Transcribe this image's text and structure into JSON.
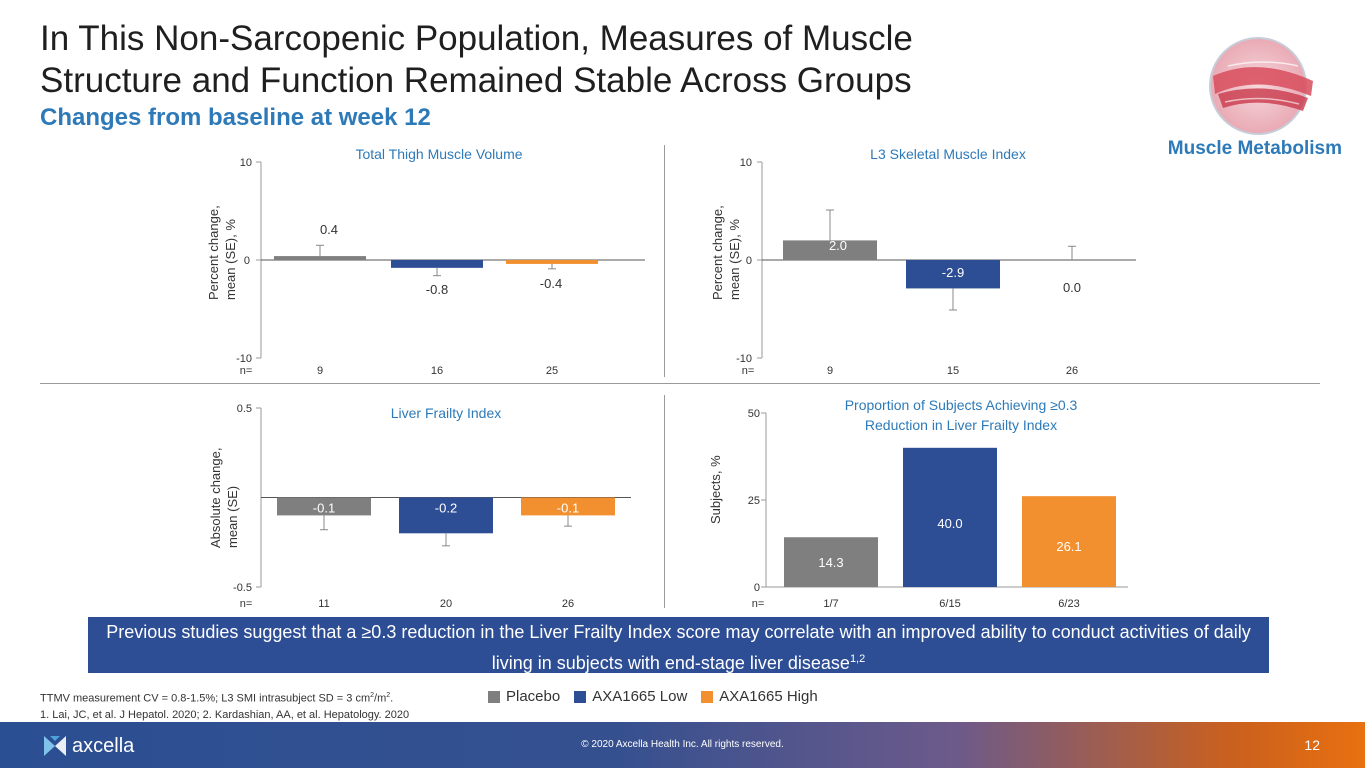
{
  "slide": {
    "title": "In This Non-Sarcopenic Population, Measures of Muscle Structure and Function Remained Stable Across Groups",
    "subtitle": "Changes from baseline at week 12",
    "section_label": "Muscle Metabolism",
    "callout_text": "Previous studies suggest that a ≥0.3 reduction in the Liver Frailty Index score may correlate with an improved ability to conduct activities of daily living in subjects with end-stage liver disease",
    "callout_superscript": "1,2",
    "footnote_1_prefix": "TTMV measurement CV = 0.8-1.5%;  L3 SMI intrasubject SD = 3 cm",
    "footnote_1_sup_a": "2",
    "footnote_1_mid": "/m",
    "footnote_1_sup_b": "2",
    "footnote_1_suffix": ".",
    "footnote_2": "1. Lai, JC, et al. J Hepatol. 2020; 2. Kardashian, AA, et al. Hepatology. 2020",
    "company_name": "axcella",
    "copyright": "© 2020 Axcella Health Inc. All rights reserved.",
    "page_number": "12"
  },
  "legend": [
    {
      "label": "Placebo",
      "color": "#7f7f7f"
    },
    {
      "label": "AXA1665 Low",
      "color": "#2d4d95"
    },
    {
      "label": "AXA1665 High",
      "color": "#f28f2e"
    }
  ],
  "chart_data": [
    {
      "type": "bar",
      "title": "Total Thigh Muscle Volume",
      "ylabel_lines": [
        "Percent change,",
        "mean (SE), %"
      ],
      "ylim": [
        -10,
        10
      ],
      "yticks": [
        "10",
        "0",
        "-10"
      ],
      "n_prefix": "n=",
      "categories": [
        "Placebo",
        "AXA1665 Low",
        "AXA1665 High"
      ],
      "values": [
        0.4,
        -0.8,
        -0.4
      ],
      "value_labels": [
        "0.4",
        "-0.8",
        "-0.4"
      ],
      "error": [
        1.1,
        0.8,
        0.5
      ],
      "n": [
        "9",
        "16",
        "25"
      ]
    },
    {
      "type": "bar",
      "title": "L3 Skeletal Muscle Index",
      "ylabel_lines": [
        "Percent change,",
        "mean (SE), %"
      ],
      "ylim": [
        -10,
        10
      ],
      "yticks": [
        "10",
        "0",
        "-10"
      ],
      "n_prefix": "n=",
      "categories": [
        "Placebo",
        "AXA1665 Low",
        "AXA1665 High"
      ],
      "values": [
        2.0,
        -2.9,
        0.0
      ],
      "value_labels": [
        "2.0",
        "-2.9",
        "0.0"
      ],
      "error": [
        3.1,
        2.2,
        1.4
      ],
      "n": [
        "9",
        "15",
        "26"
      ]
    },
    {
      "type": "bar",
      "title": "Liver Frailty Index",
      "ylabel_lines": [
        "Absolute change,",
        "mean (SE)"
      ],
      "ylim": [
        -0.5,
        0.5
      ],
      "yticks": [
        "0.5",
        "-0.5"
      ],
      "n_prefix": "n=",
      "categories": [
        "Placebo",
        "AXA1665 Low",
        "AXA1665 High"
      ],
      "values": [
        -0.1,
        -0.2,
        -0.1
      ],
      "value_labels": [
        "-0.1",
        "-0.2",
        "-0.1"
      ],
      "error": [
        0.08,
        0.07,
        0.06
      ],
      "n": [
        "11",
        "20",
        "26"
      ]
    },
    {
      "type": "bar",
      "title": "Proportion of Subjects Achieving ≥0.3 Reduction in Liver Frailty Index",
      "title_lines": [
        "Proportion of Subjects Achieving ≥0.3",
        "Reduction in Liver Frailty Index"
      ],
      "ylabel_lines": [
        "Subjects, %"
      ],
      "ylim": [
        0,
        50
      ],
      "yticks": [
        "50",
        "25",
        "0"
      ],
      "n_prefix": "n=",
      "categories": [
        "Placebo",
        "AXA1665 Low",
        "AXA1665 High"
      ],
      "values": [
        14.3,
        40.0,
        26.1
      ],
      "value_labels": [
        "14.3",
        "40.0",
        "26.1"
      ],
      "n": [
        "1/7",
        "6/15",
        "6/23"
      ]
    }
  ]
}
